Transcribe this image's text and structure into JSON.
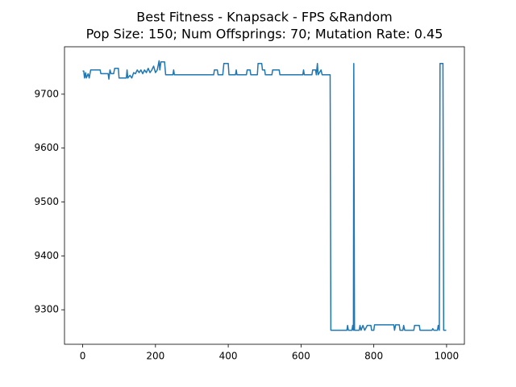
{
  "chart_data": {
    "type": "line",
    "title": "Best Fitness - Knapsack - FPS &Random",
    "subtitle": "Pop Size: 150; Num Offsprings: 70; Mutation Rate: 0.45",
    "x": [
      0,
      3,
      5,
      8,
      10,
      15,
      18,
      22,
      48,
      50,
      70,
      72,
      75,
      78,
      85,
      88,
      98,
      100,
      120,
      122,
      124,
      130,
      135,
      140,
      145,
      150,
      155,
      160,
      165,
      170,
      175,
      180,
      185,
      190,
      195,
      200,
      205,
      210,
      212,
      215,
      225,
      228,
      248,
      250,
      252,
      360,
      362,
      370,
      372,
      385,
      388,
      400,
      402,
      420,
      422,
      424,
      450,
      452,
      460,
      462,
      480,
      482,
      492,
      494,
      500,
      502,
      520,
      522,
      540,
      542,
      605,
      607,
      609,
      630,
      632,
      640,
      642,
      645,
      647,
      655,
      658,
      680,
      682,
      726,
      728,
      730,
      740,
      742,
      744,
      745,
      747,
      760,
      762,
      765,
      770,
      775,
      782,
      792,
      794,
      800,
      802,
      855,
      857,
      860,
      870,
      872,
      880,
      882,
      885,
      910,
      912,
      925,
      927,
      960,
      962,
      965,
      975,
      977,
      980,
      982,
      990,
      992,
      999
    ],
    "series": [
      {
        "name": "best fitness",
        "color": "#1f77b4",
        "values": [
          9743,
          9743,
          9730,
          9740,
          9730,
          9738,
          9730,
          9745,
          9745,
          9738,
          9738,
          9728,
          9745,
          9738,
          9738,
          9748,
          9748,
          9730,
          9730,
          9745,
          9730,
          9735,
          9730,
          9740,
          9738,
          9745,
          9740,
          9745,
          9738,
          9745,
          9740,
          9748,
          9740,
          9745,
          9752,
          9740,
          9745,
          9762,
          9745,
          9760,
          9760,
          9736,
          9736,
          9745,
          9736,
          9736,
          9745,
          9745,
          9736,
          9736,
          9757,
          9757,
          9736,
          9736,
          9745,
          9736,
          9736,
          9745,
          9745,
          9736,
          9736,
          9757,
          9757,
          9745,
          9745,
          9736,
          9736,
          9745,
          9745,
          9736,
          9736,
          9745,
          9736,
          9736,
          9745,
          9745,
          9736,
          9757,
          9736,
          9745,
          9736,
          9736,
          9262,
          9262,
          9271,
          9262,
          9262,
          9271,
          9262,
          9757,
          9262,
          9262,
          9271,
          9262,
          9271,
          9262,
          9271,
          9271,
          9262,
          9262,
          9272,
          9272,
          9262,
          9272,
          9272,
          9262,
          9262,
          9271,
          9262,
          9262,
          9271,
          9271,
          9262,
          9262,
          9265,
          9262,
          9262,
          9271,
          9262,
          9757,
          9757,
          9262,
          9262
        ]
      }
    ],
    "xlim": [
      -49.95,
      1048.95
    ],
    "xticks": [
      0,
      200,
      400,
      600,
      800,
      1000
    ],
    "ylim": [
      9236,
      9788
    ],
    "yticks": [
      9300,
      9400,
      9500,
      9600,
      9700
    ]
  }
}
